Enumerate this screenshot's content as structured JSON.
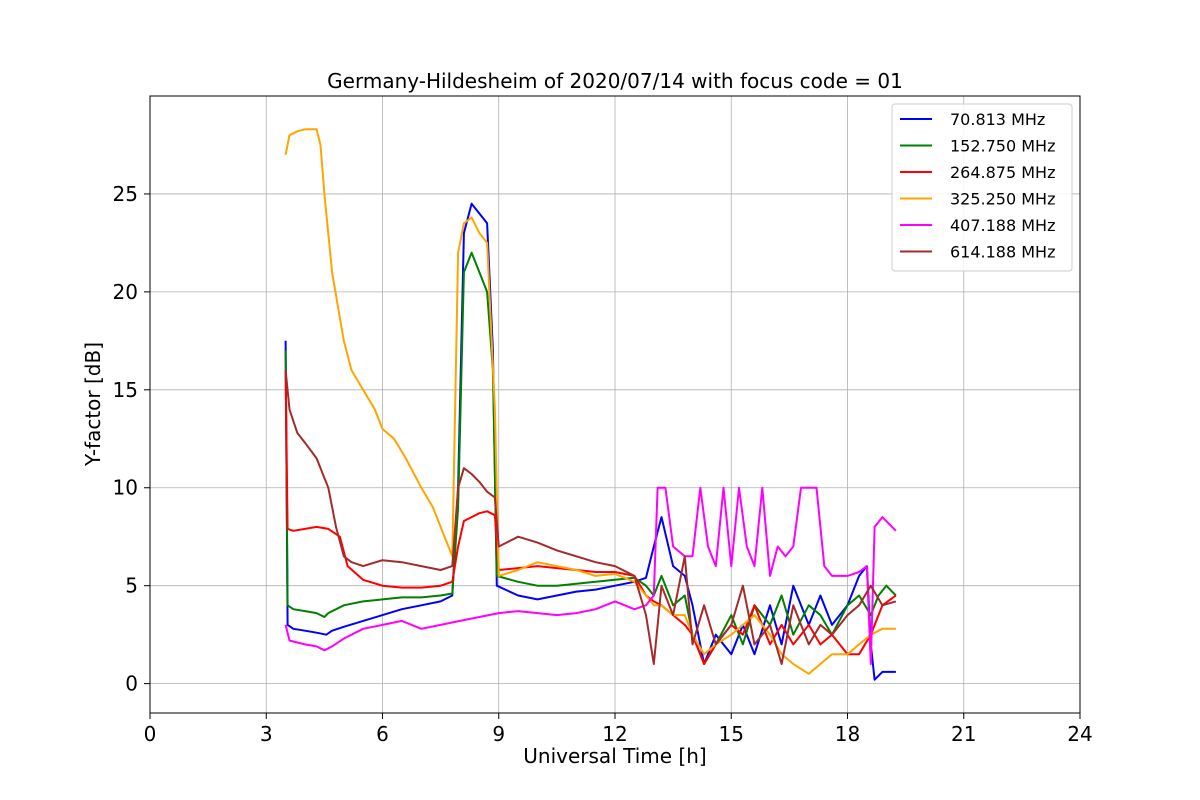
{
  "chart_data": {
    "type": "line",
    "title": "Germany-Hildesheim of 2020/07/14 with focus code = 01",
    "xlabel": "Universal Time [h]",
    "ylabel": "Y-factor [dB]",
    "xlim": [
      0,
      24
    ],
    "ylim": [
      -1.5,
      30
    ],
    "xticks": [
      0,
      3,
      6,
      9,
      12,
      15,
      18,
      21,
      24
    ],
    "yticks": [
      0,
      5,
      10,
      15,
      20,
      25
    ],
    "grid": true,
    "legend_position": "top-right",
    "series": [
      {
        "name": " 70.813 MHz",
        "color": "#0000ff",
        "x": [
          3.5,
          3.55,
          3.7,
          4.0,
          4.3,
          4.55,
          4.7,
          5.0,
          5.5,
          6.0,
          6.5,
          7.0,
          7.5,
          7.8,
          7.95,
          8.1,
          8.3,
          8.5,
          8.7,
          8.85,
          8.95,
          9.5,
          10.0,
          10.5,
          11.0,
          11.5,
          12.0,
          12.5,
          12.8,
          13.0,
          13.2,
          13.5,
          13.8,
          14.0,
          14.3,
          14.6,
          15.0,
          15.3,
          15.6,
          16.0,
          16.3,
          16.6,
          17.0,
          17.3,
          17.6,
          18.0,
          18.3,
          18.5,
          18.6,
          18.7,
          18.9,
          19.25
        ],
        "y": [
          17.5,
          3.0,
          2.8,
          2.7,
          2.6,
          2.5,
          2.7,
          2.9,
          3.2,
          3.5,
          3.8,
          4.0,
          4.2,
          4.5,
          10.0,
          23.0,
          24.5,
          24.0,
          23.5,
          17.0,
          5.0,
          4.5,
          4.3,
          4.5,
          4.7,
          4.8,
          5.0,
          5.2,
          5.4,
          7.0,
          8.5,
          6.0,
          5.5,
          4.0,
          1.0,
          2.5,
          1.5,
          3.0,
          1.5,
          4.0,
          2.0,
          5.0,
          3.0,
          4.5,
          3.0,
          4.0,
          5.5,
          6.0,
          2.0,
          0.2,
          0.6,
          0.6
        ]
      },
      {
        "name": "152.750 MHz",
        "color": "#008000",
        "x": [
          3.5,
          3.55,
          3.7,
          4.0,
          4.3,
          4.5,
          4.6,
          5.0,
          5.5,
          6.0,
          6.5,
          7.0,
          7.5,
          7.8,
          7.95,
          8.1,
          8.3,
          8.5,
          8.7,
          8.85,
          8.95,
          9.5,
          10.0,
          10.5,
          11.0,
          11.5,
          12.0,
          12.5,
          12.8,
          13.0,
          13.2,
          13.5,
          13.8,
          14.0,
          14.3,
          14.6,
          15.0,
          15.3,
          15.6,
          16.0,
          16.3,
          16.6,
          17.0,
          17.3,
          17.6,
          18.0,
          18.3,
          18.6,
          18.8,
          19.0,
          19.25
        ],
        "y": [
          17.0,
          4.0,
          3.8,
          3.7,
          3.6,
          3.4,
          3.6,
          4.0,
          4.2,
          4.3,
          4.4,
          4.4,
          4.5,
          4.6,
          9.0,
          21.0,
          22.0,
          21.0,
          20.0,
          16.0,
          5.5,
          5.2,
          5.0,
          5.0,
          5.1,
          5.2,
          5.3,
          5.4,
          5.0,
          4.5,
          5.5,
          4.0,
          4.5,
          2.5,
          1.0,
          2.0,
          3.5,
          2.0,
          4.0,
          3.0,
          4.5,
          2.5,
          4.0,
          3.5,
          2.5,
          4.0,
          4.5,
          3.5,
          4.5,
          5.0,
          4.5
        ]
      },
      {
        "name": "264.875 MHz",
        "color": "#ff0000",
        "x": [
          3.5,
          3.55,
          3.7,
          4.0,
          4.3,
          4.6,
          4.9,
          5.1,
          5.5,
          6.0,
          6.5,
          7.0,
          7.5,
          7.8,
          7.95,
          8.1,
          8.3,
          8.5,
          8.7,
          8.9,
          9.0,
          9.5,
          10.0,
          10.5,
          11.0,
          11.5,
          12.0,
          12.5,
          12.8,
          13.0,
          13.2,
          13.5,
          13.8,
          14.0,
          14.3,
          14.6,
          15.0,
          15.3,
          15.6,
          16.0,
          16.3,
          16.6,
          17.0,
          17.3,
          17.6,
          18.0,
          18.3,
          18.6,
          18.9,
          19.25
        ],
        "y": [
          16.0,
          7.9,
          7.8,
          7.9,
          8.0,
          7.9,
          7.5,
          6.0,
          5.3,
          5.0,
          4.9,
          4.9,
          5.0,
          5.2,
          7.0,
          8.3,
          8.5,
          8.7,
          8.8,
          8.6,
          5.8,
          5.9,
          6.0,
          5.9,
          5.8,
          5.7,
          5.7,
          5.5,
          4.5,
          4.2,
          4.0,
          3.5,
          3.0,
          2.5,
          1.0,
          2.0,
          3.0,
          2.5,
          4.0,
          2.0,
          3.0,
          2.0,
          3.0,
          2.0,
          2.5,
          1.5,
          1.5,
          2.5,
          4.0,
          4.5
        ]
      },
      {
        "name": "325.250 MHz",
        "color": "#ffa500",
        "x": [
          3.5,
          3.6,
          3.8,
          4.0,
          4.3,
          4.4,
          4.5,
          4.7,
          5.0,
          5.2,
          5.5,
          5.8,
          6.0,
          6.3,
          6.6,
          7.0,
          7.3,
          7.6,
          7.8,
          7.95,
          8.1,
          8.3,
          8.5,
          8.7,
          8.9,
          9.0,
          9.5,
          10.0,
          10.5,
          11.0,
          11.5,
          12.0,
          12.5,
          12.8,
          13.0,
          13.2,
          13.5,
          13.8,
          14.0,
          14.3,
          14.6,
          15.0,
          15.3,
          15.6,
          16.0,
          16.3,
          16.6,
          17.0,
          17.3,
          17.6,
          18.0,
          18.3,
          18.6,
          18.9,
          19.25
        ],
        "y": [
          27.0,
          28.0,
          28.2,
          28.3,
          28.3,
          27.5,
          25.0,
          21.0,
          17.5,
          16.0,
          15.0,
          14.0,
          13.0,
          12.5,
          11.5,
          10.0,
          9.0,
          7.5,
          6.5,
          22.0,
          23.5,
          23.8,
          23.0,
          22.5,
          14.0,
          5.5,
          5.8,
          6.2,
          6.0,
          5.8,
          5.5,
          5.6,
          5.2,
          4.5,
          4.0,
          4.0,
          3.5,
          3.5,
          2.5,
          1.5,
          2.0,
          2.5,
          3.0,
          3.5,
          2.5,
          1.5,
          1.0,
          0.5,
          1.0,
          1.5,
          1.5,
          2.0,
          2.5,
          2.8,
          2.8
        ]
      },
      {
        "name": "407.188 MHz",
        "color": "#ff00ff",
        "x": [
          3.5,
          3.6,
          3.8,
          4.0,
          4.3,
          4.5,
          4.7,
          5.0,
          5.5,
          6.0,
          6.5,
          7.0,
          7.5,
          8.0,
          8.5,
          9.0,
          9.5,
          10.0,
          10.5,
          11.0,
          11.5,
          12.0,
          12.5,
          12.8,
          13.0,
          13.1,
          13.3,
          13.5,
          13.8,
          14.0,
          14.2,
          14.4,
          14.6,
          14.8,
          15.0,
          15.2,
          15.4,
          15.6,
          15.8,
          16.0,
          16.2,
          16.4,
          16.6,
          16.8,
          17.0,
          17.2,
          17.4,
          17.6,
          17.8,
          18.0,
          18.3,
          18.5,
          18.6,
          18.7,
          18.9,
          19.25
        ],
        "y": [
          3.0,
          2.2,
          2.1,
          2.0,
          1.9,
          1.7,
          1.9,
          2.3,
          2.8,
          3.0,
          3.2,
          2.8,
          3.0,
          3.2,
          3.4,
          3.6,
          3.7,
          3.6,
          3.5,
          3.6,
          3.8,
          4.2,
          3.8,
          4.0,
          4.5,
          10.0,
          10.0,
          7.0,
          6.5,
          6.5,
          10.0,
          7.0,
          6.0,
          10.0,
          6.0,
          10.0,
          7.0,
          6.0,
          10.0,
          5.5,
          7.0,
          6.5,
          7.0,
          10.0,
          10.0,
          10.0,
          6.0,
          5.5,
          5.5,
          5.5,
          5.7,
          6.0,
          1.0,
          8.0,
          8.5,
          7.8
        ]
      },
      {
        "name": "614.188 MHz",
        "color": "#a52a2a",
        "x": [
          3.5,
          3.6,
          3.8,
          4.0,
          4.3,
          4.6,
          4.8,
          5.0,
          5.2,
          5.5,
          6.0,
          6.5,
          7.0,
          7.5,
          7.8,
          7.95,
          8.1,
          8.3,
          8.5,
          8.7,
          8.9,
          9.0,
          9.5,
          10.0,
          10.5,
          11.0,
          11.5,
          12.0,
          12.5,
          12.8,
          13.0,
          13.2,
          13.5,
          13.8,
          14.0,
          14.3,
          14.6,
          15.0,
          15.3,
          15.6,
          16.0,
          16.3,
          16.6,
          17.0,
          17.3,
          17.6,
          18.0,
          18.3,
          18.6,
          18.9,
          19.25
        ],
        "y": [
          16.0,
          14.0,
          12.8,
          12.3,
          11.5,
          10.0,
          8.0,
          6.5,
          6.2,
          6.0,
          6.3,
          6.2,
          6.0,
          5.8,
          6.0,
          10.0,
          11.0,
          10.7,
          10.3,
          9.8,
          9.5,
          7.0,
          7.5,
          7.2,
          6.8,
          6.5,
          6.2,
          6.0,
          5.5,
          3.5,
          1.0,
          5.0,
          3.5,
          6.5,
          2.0,
          4.0,
          2.0,
          3.0,
          5.0,
          2.0,
          3.0,
          1.0,
          4.0,
          2.0,
          3.0,
          2.5,
          3.5,
          4.0,
          5.0,
          4.0,
          4.2
        ]
      }
    ]
  }
}
